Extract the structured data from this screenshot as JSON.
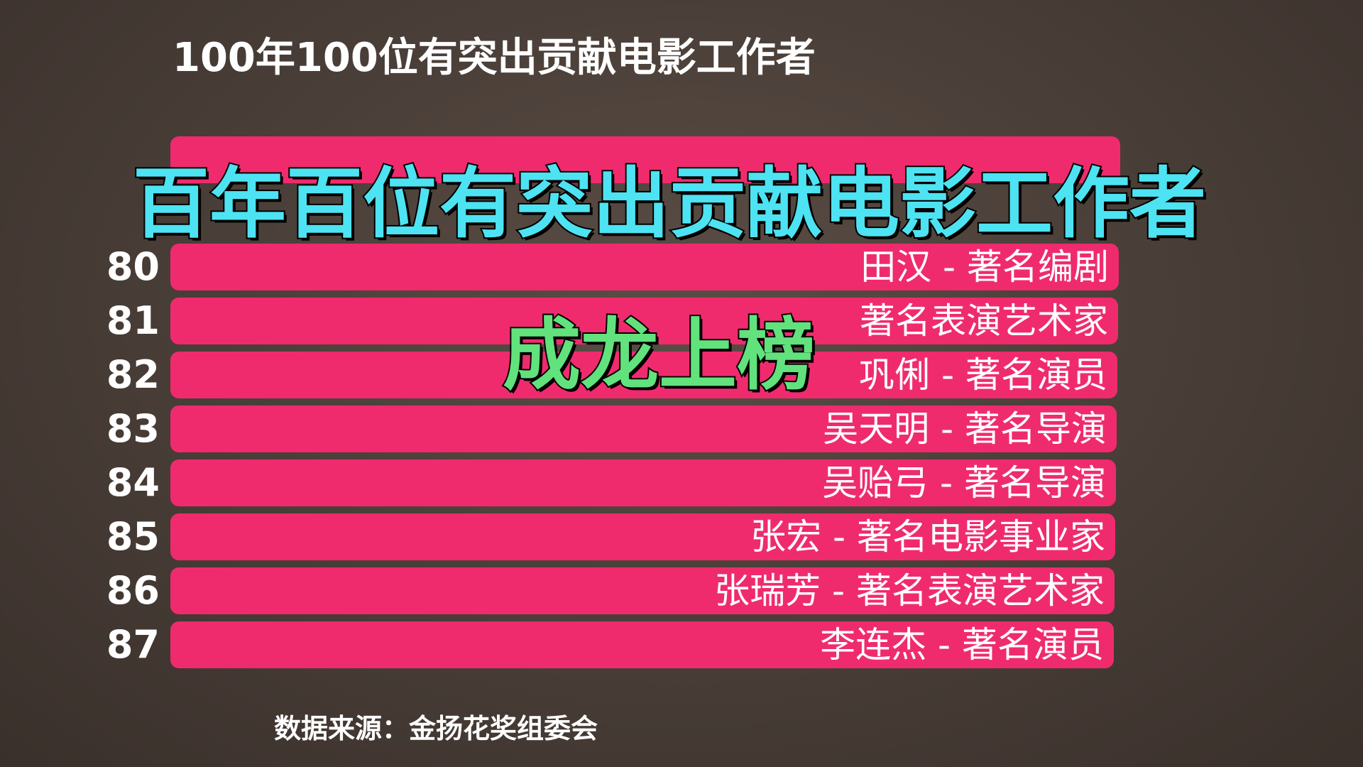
{
  "header": {
    "title": "100年100位有突出贡献电影工作者"
  },
  "overlay": {
    "headline": "百年百位有突出贡献电影工作者",
    "subline": "成龙上榜"
  },
  "rows": [
    {
      "rank": "80",
      "label": "田汉 - 著名编剧"
    },
    {
      "rank": "81",
      "label": "著名表演艺术家"
    },
    {
      "rank": "82",
      "label": "巩俐 - 著名演员"
    },
    {
      "rank": "83",
      "label": "吴天明 - 著名导演"
    },
    {
      "rank": "84",
      "label": "吴贻弓 - 著名导演"
    },
    {
      "rank": "85",
      "label": "张宏 - 著名电影事业家"
    },
    {
      "rank": "86",
      "label": "张瑞芳 - 著名表演艺术家"
    },
    {
      "rank": "87",
      "label": "李连杰 - 著名演员"
    }
  ],
  "footer": {
    "source": "数据来源：金扬花奖组委会"
  }
}
